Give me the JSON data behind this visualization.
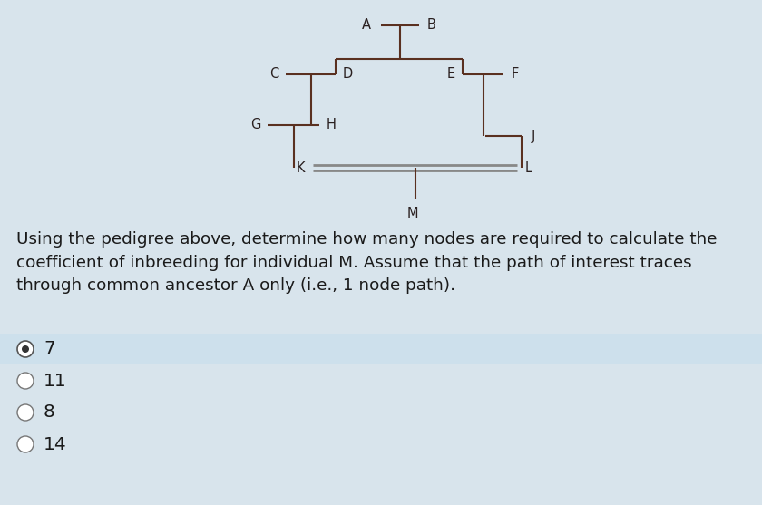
{
  "bg_color": "#dde8f0",
  "bg_bottom_color": "#e8eef2",
  "question_text": "Using the pedigree above, determine how many nodes are required to calculate the\ncoefficient of inbreeding for individual M. Assume that the path of interest traces\nthrough common ancestor A only (i.e., 1 node path).",
  "question_fontsize": 13.2,
  "choices": [
    "7",
    "11",
    "8",
    "14"
  ],
  "selected": 0,
  "line_color": "#5a3020",
  "double_line_color": "#888888",
  "text_color": "#1a1a1a",
  "label_color": "#2a2020",
  "selected_bg": "#cde0ec",
  "unselected_bg": "#e8eef2",
  "overall_bg": "#d8e4ec"
}
